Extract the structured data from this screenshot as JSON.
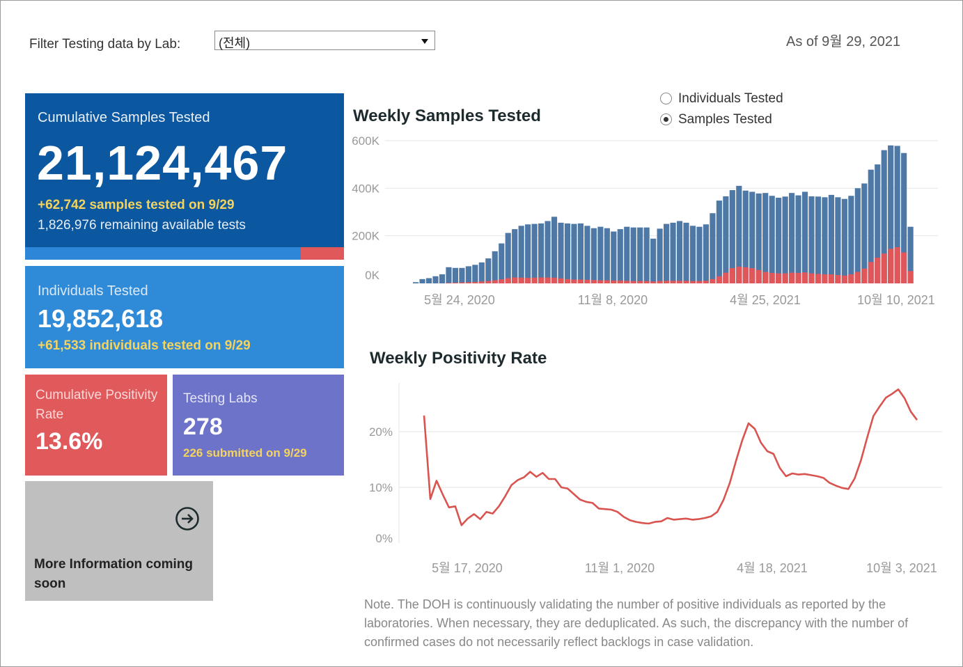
{
  "filter": {
    "label": "Filter Testing data by Lab:",
    "value": "(전체)"
  },
  "as_of": "As of 9월 29, 2021",
  "cumulative": {
    "label": "Cumulative Samples Tested",
    "value": "21,124,467",
    "today": "+62,742 samples tested on 9/29",
    "remaining": "1,826,976 remaining available tests",
    "progress_fraction": 0.865
  },
  "individuals": {
    "label": "Individuals Tested",
    "value": "19,852,618",
    "today": "+61,533  individuals  tested on 9/29"
  },
  "positivity": {
    "label": "Cumulative Positivity Rate",
    "value": "13.6%"
  },
  "labs": {
    "label": "Testing Labs",
    "value": "278",
    "today": "226 submitted on 9/29"
  },
  "more": {
    "text": "More Information coming soon",
    "icon": "arrow-circle-right-icon"
  },
  "toggle": {
    "options": [
      {
        "label": "Individuals Tested",
        "selected": false
      },
      {
        "label": "Samples Tested",
        "selected": true
      }
    ]
  },
  "colors": {
    "blue_bar": "#4e79a7",
    "red_bar": "#e15759",
    "line": "#d9534f"
  },
  "note": "Note. The DOH is continuously validating the number of positive individuals as reported by the laboratories. When necessary, they are deduplicated. As such, the discrepancy with the number of confirmed cases do not necessarily reflect backlogs in case validation.",
  "chart_data": [
    {
      "type": "bar",
      "stacked": false,
      "title": "Weekly Samples Tested",
      "yticks": [
        "0K",
        "200K",
        "400K",
        "600K"
      ],
      "ylim": [
        0,
        600000
      ],
      "xticks": [
        "5월 24, 2020",
        "11월 8, 2020",
        "4월 25, 2021",
        "10월 10, 2021"
      ],
      "grid": true,
      "series": [
        {
          "color": "#4e79a7",
          "values": [
            5000,
            18000,
            22000,
            30000,
            38000,
            68000,
            65000,
            65000,
            72000,
            78000,
            88000,
            105000,
            135000,
            168000,
            212000,
            228000,
            242000,
            248000,
            250000,
            252000,
            262000,
            280000,
            255000,
            252000,
            250000,
            252000,
            242000,
            232000,
            238000,
            232000,
            218000,
            228000,
            238000,
            235000,
            235000,
            235000,
            188000,
            230000,
            250000,
            255000,
            262000,
            255000,
            242000,
            238000,
            248000,
            295000,
            348000,
            366000,
            392000,
            410000,
            390000,
            385000,
            378000,
            380000,
            368000,
            360000,
            365000,
            380000,
            370000,
            385000,
            366000,
            365000,
            362000,
            372000,
            362000,
            355000,
            368000,
            400000,
            420000,
            478000,
            500000,
            560000,
            580000,
            578000,
            548000,
            238000
          ]
        },
        {
          "color": "#e15759",
          "values": [
            0,
            0,
            0,
            0,
            0,
            2000,
            3000,
            4000,
            5000,
            6000,
            8000,
            10000,
            13000,
            17000,
            22000,
            25000,
            24000,
            23000,
            24000,
            25000,
            25000,
            24000,
            21000,
            18000,
            16000,
            16000,
            15000,
            14000,
            13000,
            13000,
            12000,
            12000,
            11000,
            10000,
            10000,
            10000,
            8000,
            10000,
            11000,
            11000,
            11000,
            11000,
            10000,
            10000,
            11000,
            18000,
            30000,
            45000,
            64000,
            70000,
            68000,
            64000,
            56000,
            48000,
            44000,
            42000,
            42000,
            45000,
            44000,
            46000,
            42000,
            40000,
            38000,
            38000,
            35000,
            33000,
            38000,
            48000,
            62000,
            90000,
            108000,
            125000,
            145000,
            152000,
            130000,
            52000
          ]
        }
      ]
    },
    {
      "type": "line",
      "title": "Weekly Positivity Rate",
      "yticks": [
        "0%",
        "10%",
        "20%"
      ],
      "ylim": [
        0,
        30
      ],
      "xticks": [
        "5월 17, 2020",
        "11월 1, 2020",
        "4월 18, 2021",
        "10월 3, 2021"
      ],
      "grid": true,
      "values": [
        22.9,
        7.9,
        11.2,
        8.7,
        6.4,
        6.6,
        3.2,
        4.4,
        5.2,
        4.3,
        5.6,
        5.3,
        6.6,
        8.4,
        10.4,
        11.3,
        11.8,
        12.8,
        11.9,
        12.6,
        11.5,
        11.5,
        10.0,
        9.8,
        8.8,
        7.8,
        7.4,
        7.2,
        6.2,
        6.1,
        6.0,
        5.6,
        4.7,
        4.1,
        3.8,
        3.6,
        3.5,
        3.8,
        3.9,
        4.5,
        4.2,
        4.3,
        4.4,
        4.2,
        4.3,
        4.5,
        4.8,
        5.6,
        7.8,
        10.8,
        14.8,
        18.5,
        21.5,
        20.5,
        18.0,
        16.5,
        16.0,
        13.5,
        12.0,
        12.5,
        12.3,
        12.4,
        12.2,
        12.0,
        11.7,
        10.8,
        10.3,
        9.9,
        9.7,
        11.6,
        14.8,
        18.9,
        22.8,
        24.5,
        26.1,
        26.8,
        27.6,
        26.0,
        23.6,
        22.1
      ]
    }
  ]
}
